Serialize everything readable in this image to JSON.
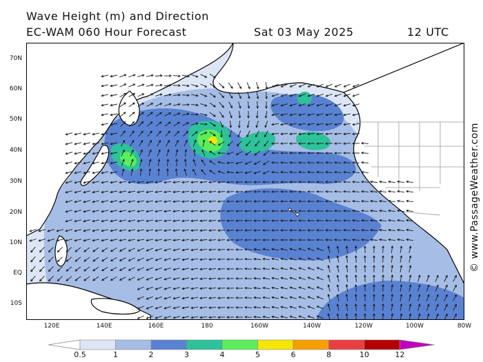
{
  "header": {
    "title": "Wave Height (m) and Direction",
    "subtitle": "EC-WAM 060 Hour Forecast",
    "date": "Sat 03 May 2025",
    "time": "12 UTC"
  },
  "credit": "© www.PassageWeather.com",
  "axes": {
    "lat_labels": [
      "70N",
      "60N",
      "50N",
      "40N",
      "30N",
      "20N",
      "10N",
      "EQ",
      "10S"
    ],
    "lon_labels": [
      "120E",
      "140E",
      "160E",
      "180",
      "160W",
      "140W",
      "120W",
      "100W",
      "80W"
    ],
    "lon_range": [
      "110E",
      "80W"
    ],
    "lat_range": [
      "15S",
      "75N"
    ]
  },
  "legend": {
    "labels": [
      "0.5",
      "1",
      "2",
      "3",
      "4",
      "5",
      "6",
      "8",
      "10",
      "12"
    ],
    "colors": [
      "#ffffff",
      "#dde6f5",
      "#a6bde6",
      "#5a82d2",
      "#2ec29a",
      "#5bee5b",
      "#f5e60a",
      "#f5a000",
      "#e84040",
      "#b40000",
      "#c000c0"
    ]
  },
  "colors": {
    "land": "#ffffff",
    "coast": "#000000",
    "borders": "#999999",
    "arrows": "#1a1a1a"
  }
}
